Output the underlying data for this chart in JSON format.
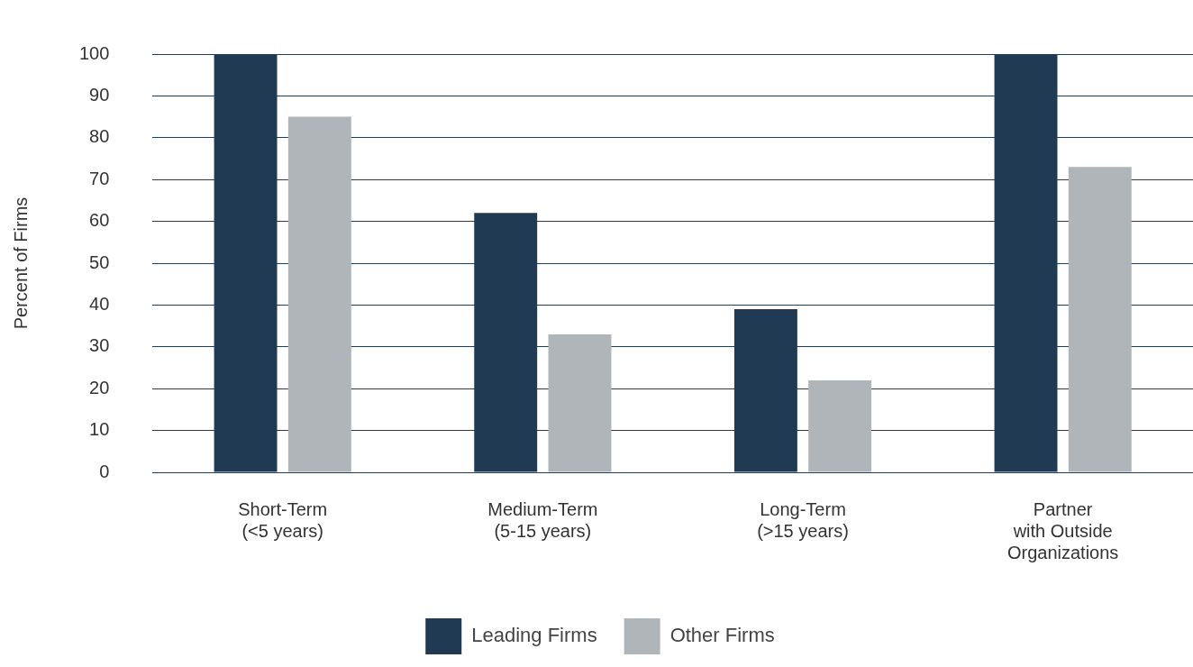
{
  "chart_data": {
    "type": "bar",
    "ylabel": "Percent of Firms",
    "categories": [
      "Short-Term\n(<5 years)",
      "Medium-Term\n(5-15 years)",
      "Long-Term\n(>15 years)",
      "Partner\nwith Outside\nOrganizations"
    ],
    "series": [
      {
        "name": "Leading Firms",
        "color": "#1f3a52",
        "values": [
          100,
          62,
          39,
          100
        ]
      },
      {
        "name": "Other Firms",
        "color": "#b0b5ba",
        "values": [
          85,
          33,
          22,
          73
        ]
      }
    ],
    "ylim": [
      0,
      100
    ],
    "yticks": [
      0,
      10,
      20,
      30,
      40,
      50,
      60,
      70,
      80,
      90,
      100
    ],
    "grid": "y",
    "legend": "bottom"
  }
}
